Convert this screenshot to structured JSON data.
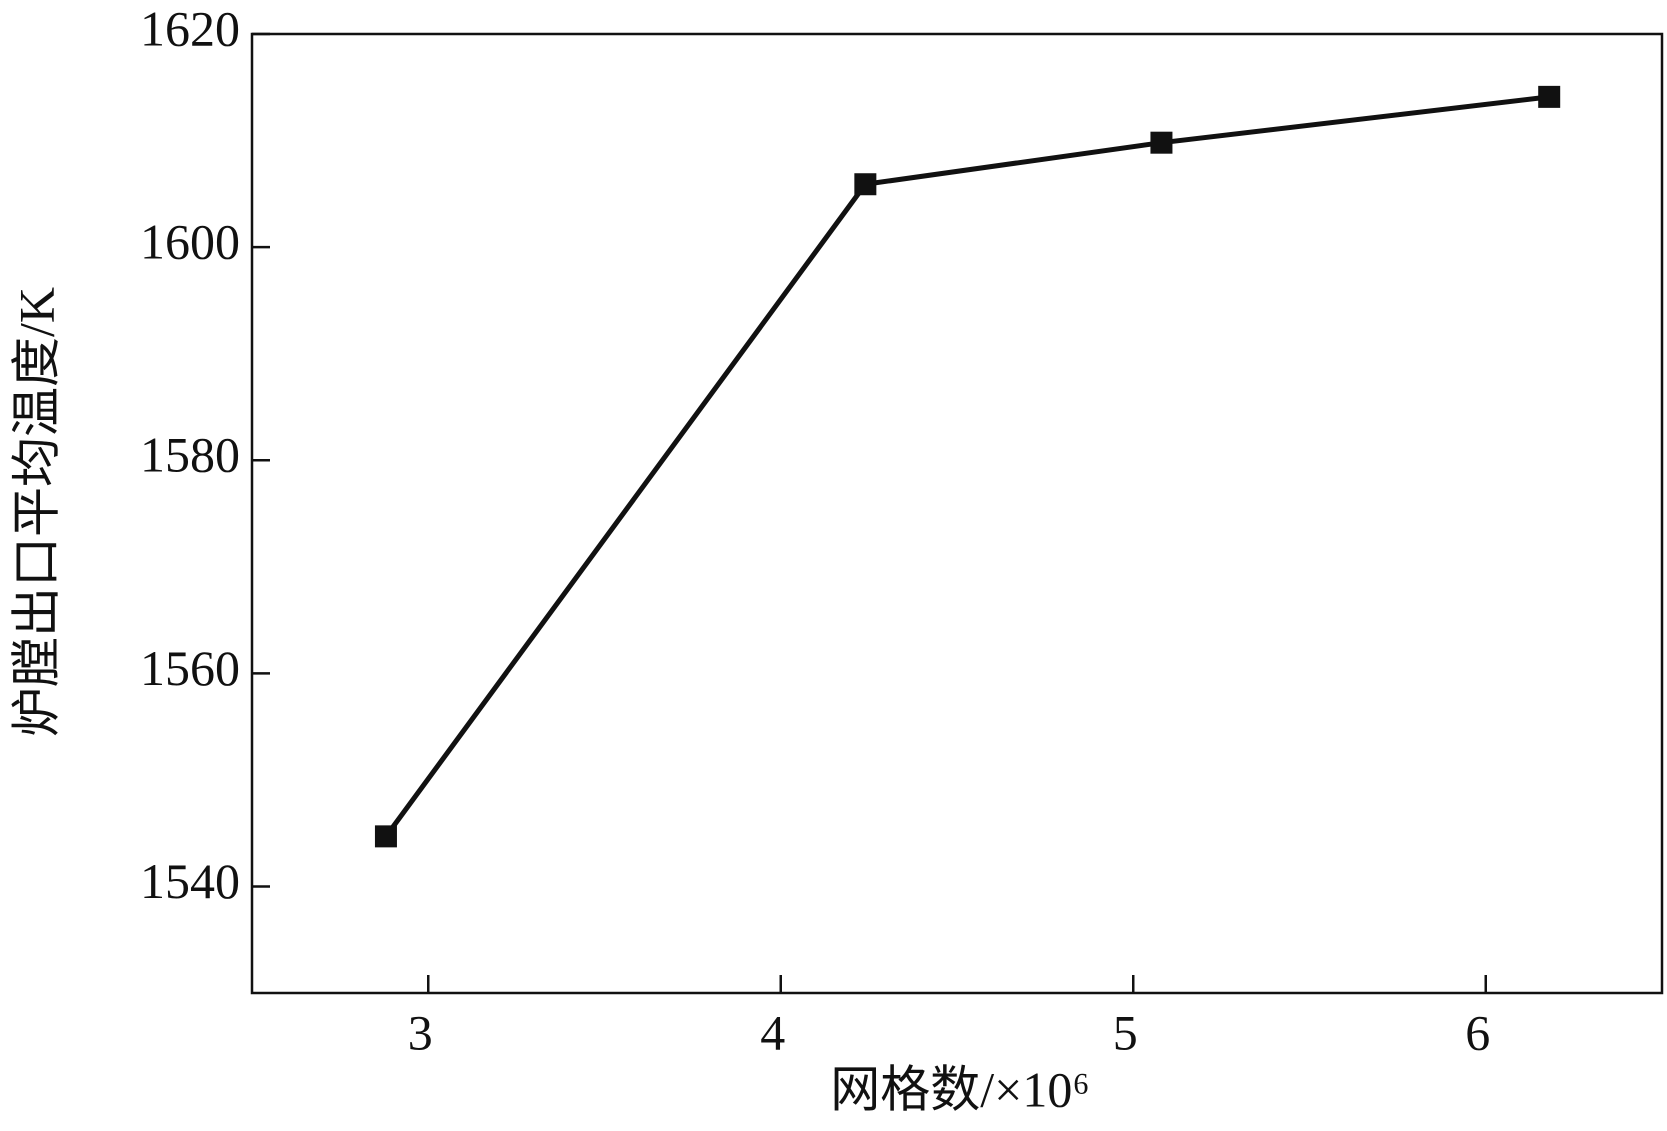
{
  "chart_data": {
    "type": "line",
    "x_label": "网格数/×10⁶",
    "y_label": "炉膛出口平均温度/K",
    "x": [
      2.88,
      4.24,
      5.08,
      6.18
    ],
    "values": [
      1544.7,
      1605.9,
      1609.8,
      1614.1
    ],
    "color": "#111111",
    "marker": "square",
    "xlim": [
      2.5,
      6.5
    ],
    "xticks": [
      3,
      4,
      5,
      6
    ],
    "ylim": [
      1530,
      1620
    ],
    "yticks": [
      1540,
      1560,
      1580,
      1600,
      1620
    ]
  }
}
